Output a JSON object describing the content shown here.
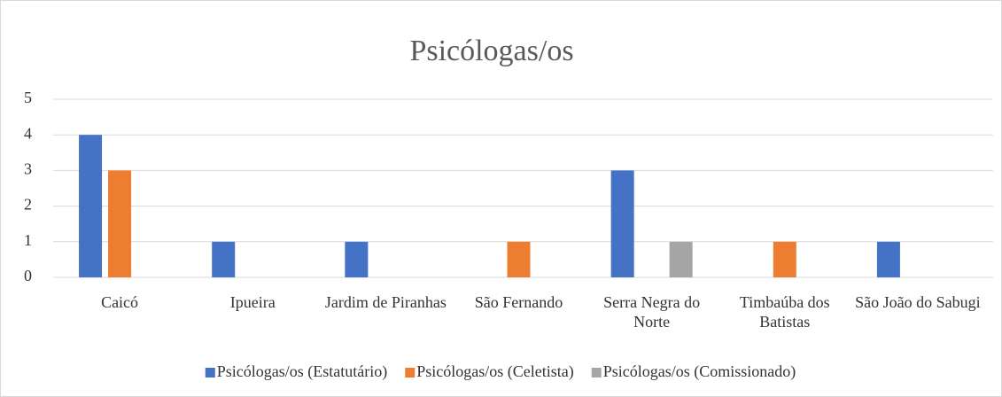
{
  "chart_data": {
    "type": "bar",
    "title": "Psicólogas/os",
    "categories": [
      "Caicó",
      "Ipueira",
      "Jardim de Piranhas",
      "São Fernando",
      "Serra Negra do Norte",
      "Timbaúba dos Batistas",
      "São João do Sabugi"
    ],
    "series": [
      {
        "name": "Psicólogas/os (Estatutário)",
        "color": "#4472c4",
        "values": [
          4,
          1,
          1,
          0,
          3,
          0,
          1
        ]
      },
      {
        "name": "Psicólogas/os (Celetista)",
        "color": "#ed7d31",
        "values": [
          3,
          0,
          0,
          1,
          0,
          1,
          0
        ]
      },
      {
        "name": "Psicólogas/os (Comissionado)",
        "color": "#a5a5a5",
        "values": [
          0,
          0,
          0,
          0,
          1,
          0,
          0
        ]
      }
    ],
    "ylim": [
      0,
      5
    ],
    "yticks": [
      0,
      1,
      2,
      3,
      4,
      5
    ],
    "grid": true,
    "legend": "bottom"
  }
}
